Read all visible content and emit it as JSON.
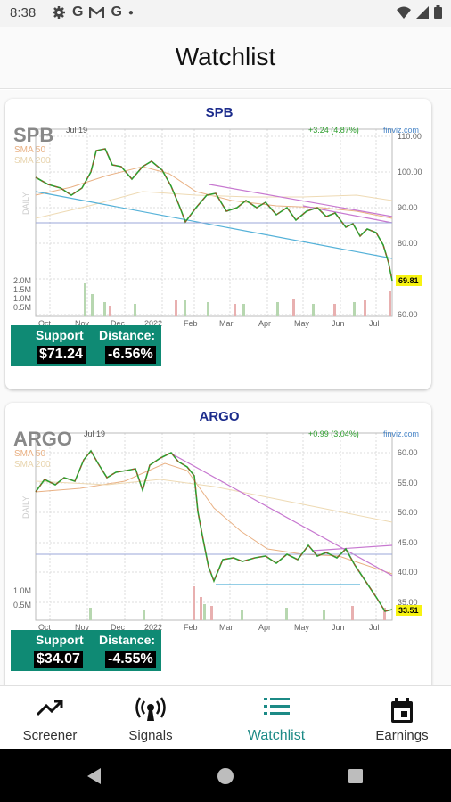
{
  "status_bar": {
    "time": "8:38",
    "icons": [
      "gear-icon",
      "google-icon",
      "gmail-icon",
      "google-icon",
      "dot-icon"
    ],
    "right_icons": [
      "wifi-icon",
      "signal-icon",
      "battery-icon"
    ]
  },
  "app_bar": {
    "title": "Watchlist"
  },
  "cards": [
    {
      "ticker": "SPB",
      "chart_label": "SPB",
      "watermark": "SPB",
      "date_label": "Jul 19",
      "change": "+3.24 (4.87%)",
      "source": "finviz.com",
      "sma50": "SMA 50",
      "sma200": "SMA 200",
      "period": "DAILY",
      "price_ticks": [
        "110.00",
        "100.00",
        "90.00",
        "80.00",
        "70.00",
        "60.00"
      ],
      "volume_ticks": [
        "2.0M",
        "1.5M",
        "1.0M",
        "0.5M"
      ],
      "months": [
        "Oct",
        "Nov",
        "Dec",
        "2022",
        "Feb",
        "Mar",
        "Apr",
        "May",
        "Jun",
        "Jul"
      ],
      "last_price": "69.81",
      "support_label": "Support",
      "support_value": "$71.24",
      "distance_label": "Distance:",
      "distance_value": "-6.56%"
    },
    {
      "ticker": "ARGO",
      "chart_label": "ARGO",
      "watermark": "ARGO",
      "date_label": "Jul 19",
      "change": "+0.99 (3.04%)",
      "source": "finviz.com",
      "sma50": "SMA 50",
      "sma200": "SMA 200",
      "period": "DAILY",
      "price_ticks": [
        "60.00",
        "55.00",
        "50.00",
        "45.00",
        "40.00",
        "35.00"
      ],
      "volume_ticks": [
        "1.0M",
        "0.5M"
      ],
      "months": [
        "Oct",
        "Nov",
        "Dec",
        "2022",
        "Feb",
        "Mar",
        "Apr",
        "May",
        "Jun",
        "Jul"
      ],
      "last_price": "33.51",
      "support_label": "Support",
      "support_value": "$34.07",
      "distance_label": "Distance:",
      "distance_value": "-4.55%"
    }
  ],
  "bottom_nav": [
    {
      "label": "Screener",
      "icon": "trending-up-icon"
    },
    {
      "label": "Signals",
      "icon": "broadcast-icon"
    },
    {
      "label": "Watchlist",
      "icon": "list-icon",
      "active": true
    },
    {
      "label": "Earnings",
      "icon": "calendar-icon"
    }
  ],
  "colors": {
    "accent": "#1c8a86",
    "support_box": "#0f8a74",
    "up": "#2e9e2e",
    "down": "#c0392b"
  }
}
